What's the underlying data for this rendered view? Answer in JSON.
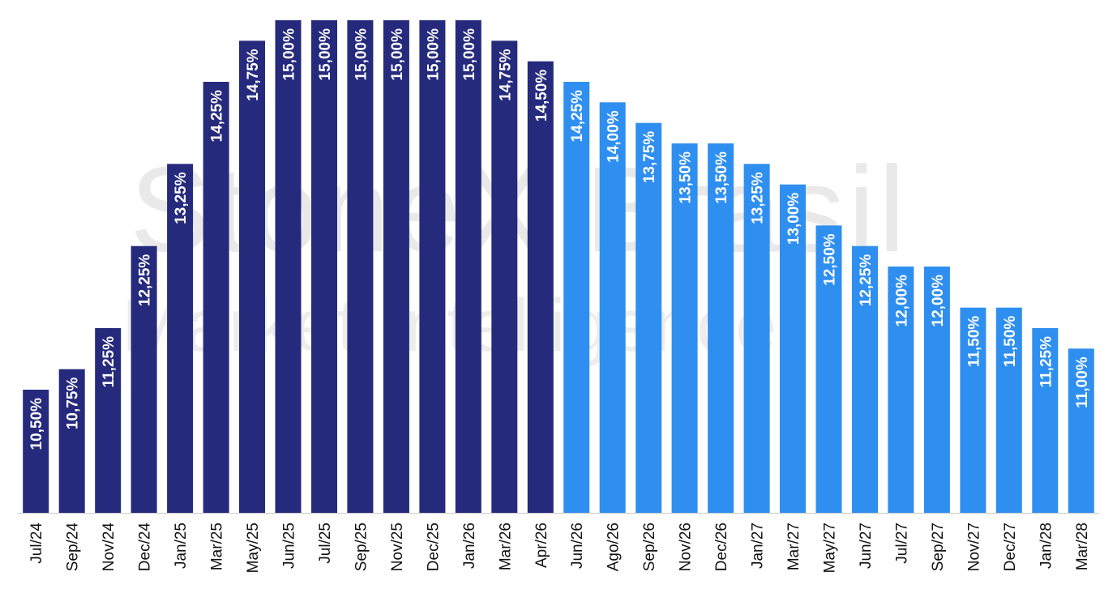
{
  "watermark": {
    "brand": "StoneX Brasil",
    "subtitle": "Market Intelligence"
  },
  "chart_data": {
    "type": "bar",
    "categories": [
      "Jul/24",
      "Sep/24",
      "Nov/24",
      "Dec/24",
      "Jan/25",
      "Mar/25",
      "May/25",
      "Jun/25",
      "Jul/25",
      "Sep/25",
      "Nov/25",
      "Dec/25",
      "Jan/26",
      "Mar/26",
      "Apr/26",
      "Jun/26",
      "Ago/26",
      "Sep/26",
      "Nov/26",
      "Dec/26",
      "Jan/27",
      "Mar/27",
      "May/27",
      "Jun/27",
      "Jul/27",
      "Sep/27",
      "Nov/27",
      "Dec/27",
      "Jan/28",
      "Mar/28"
    ],
    "values": [
      10.5,
      10.75,
      11.25,
      12.25,
      13.25,
      14.25,
      14.75,
      15.0,
      15.0,
      15.0,
      15.0,
      15.0,
      15.0,
      14.75,
      14.5,
      14.25,
      14.0,
      13.75,
      13.5,
      13.5,
      13.25,
      13.0,
      12.5,
      12.25,
      12.0,
      12.0,
      11.5,
      11.5,
      11.25,
      11.0
    ],
    "data_labels": [
      "10,50%",
      "10,75%",
      "11,25%",
      "12,25%",
      "13,25%",
      "14,25%",
      "14,75%",
      "15,00%",
      "15,00%",
      "15,00%",
      "15,00%",
      "15,00%",
      "15,00%",
      "14,75%",
      "14,50%",
      "14,25%",
      "14,00%",
      "13,75%",
      "13,50%",
      "13,50%",
      "13,25%",
      "13,00%",
      "12,50%",
      "12,25%",
      "12,00%",
      "12,00%",
      "11,50%",
      "11,50%",
      "11,25%",
      "11,00%"
    ],
    "ylim": [
      9.0,
      15.0
    ],
    "grid": false,
    "legend": "none",
    "title": "",
    "xlabel": "",
    "ylabel": "",
    "colors": {
      "realized": "#262a7d",
      "forecast": "#2f8ff0",
      "axis": "#cccccc"
    },
    "realized_count": 15
  }
}
